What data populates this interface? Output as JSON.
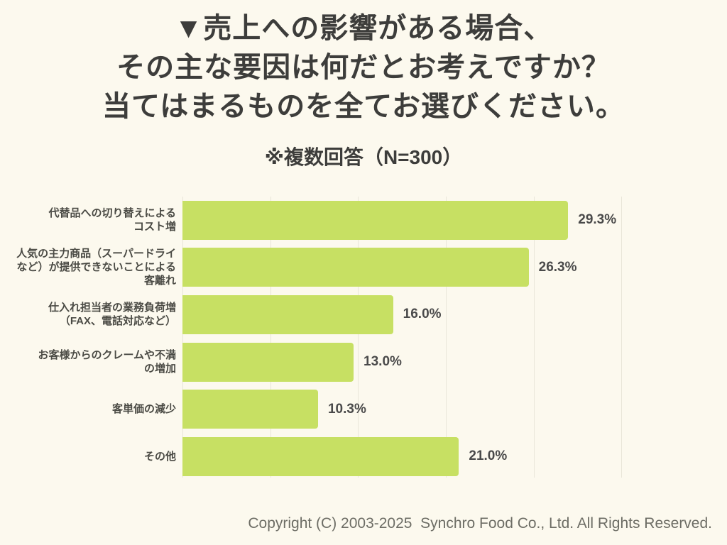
{
  "title": {
    "lines": [
      "▼売上への影響がある場合、",
      "その主な要因は何だとお考えですか？",
      "当てはまるものを全てお選びください。"
    ]
  },
  "subtitle": "※複数回答（N=300）",
  "chart_data": {
    "type": "bar",
    "orientation": "horizontal",
    "title": "売上への影響がある場合、その主な要因は何だとお考えですか？当てはまるものを全てお選びください。",
    "note": "複数回答（N=300）",
    "categories": [
      [
        "代替品への切り替えによる",
        "コスト増"
      ],
      [
        "人気の主力商品（スーパードライ",
        "など）が提供できないことによる",
        "客離れ"
      ],
      [
        "仕入れ担当者の業務負荷増",
        "（FAX、電話対応など）"
      ],
      [
        "お客様からのクレームや不満",
        "の増加"
      ],
      [
        "客単価の減少"
      ],
      [
        "その他"
      ]
    ],
    "values": [
      29.3,
      26.3,
      16.0,
      13.0,
      10.3,
      21.0
    ],
    "value_labels": [
      "29.3%",
      "26.3%",
      "16.0%",
      "13.0%",
      "10.3%",
      "21.0%"
    ],
    "xlabel": "",
    "ylabel": "",
    "xlim": [
      0,
      33.33
    ],
    "gridline_values": [
      0,
      6.67,
      13.33,
      20,
      26.67,
      33.33
    ],
    "grid": true,
    "legend": false
  },
  "colors": {
    "background": "#FCF9EE",
    "bar": "#C7E063",
    "grid": "#E9E6D9",
    "title_text": "#3D3D3B",
    "label_text": "#4A4A44",
    "value_text": "#4A4A4A",
    "footer_text": "#6D6D65"
  },
  "footer": {
    "copyright": "Copyright (C) 2003-2025  Synchro Food Co., Ltd. All Rights Reserved."
  }
}
